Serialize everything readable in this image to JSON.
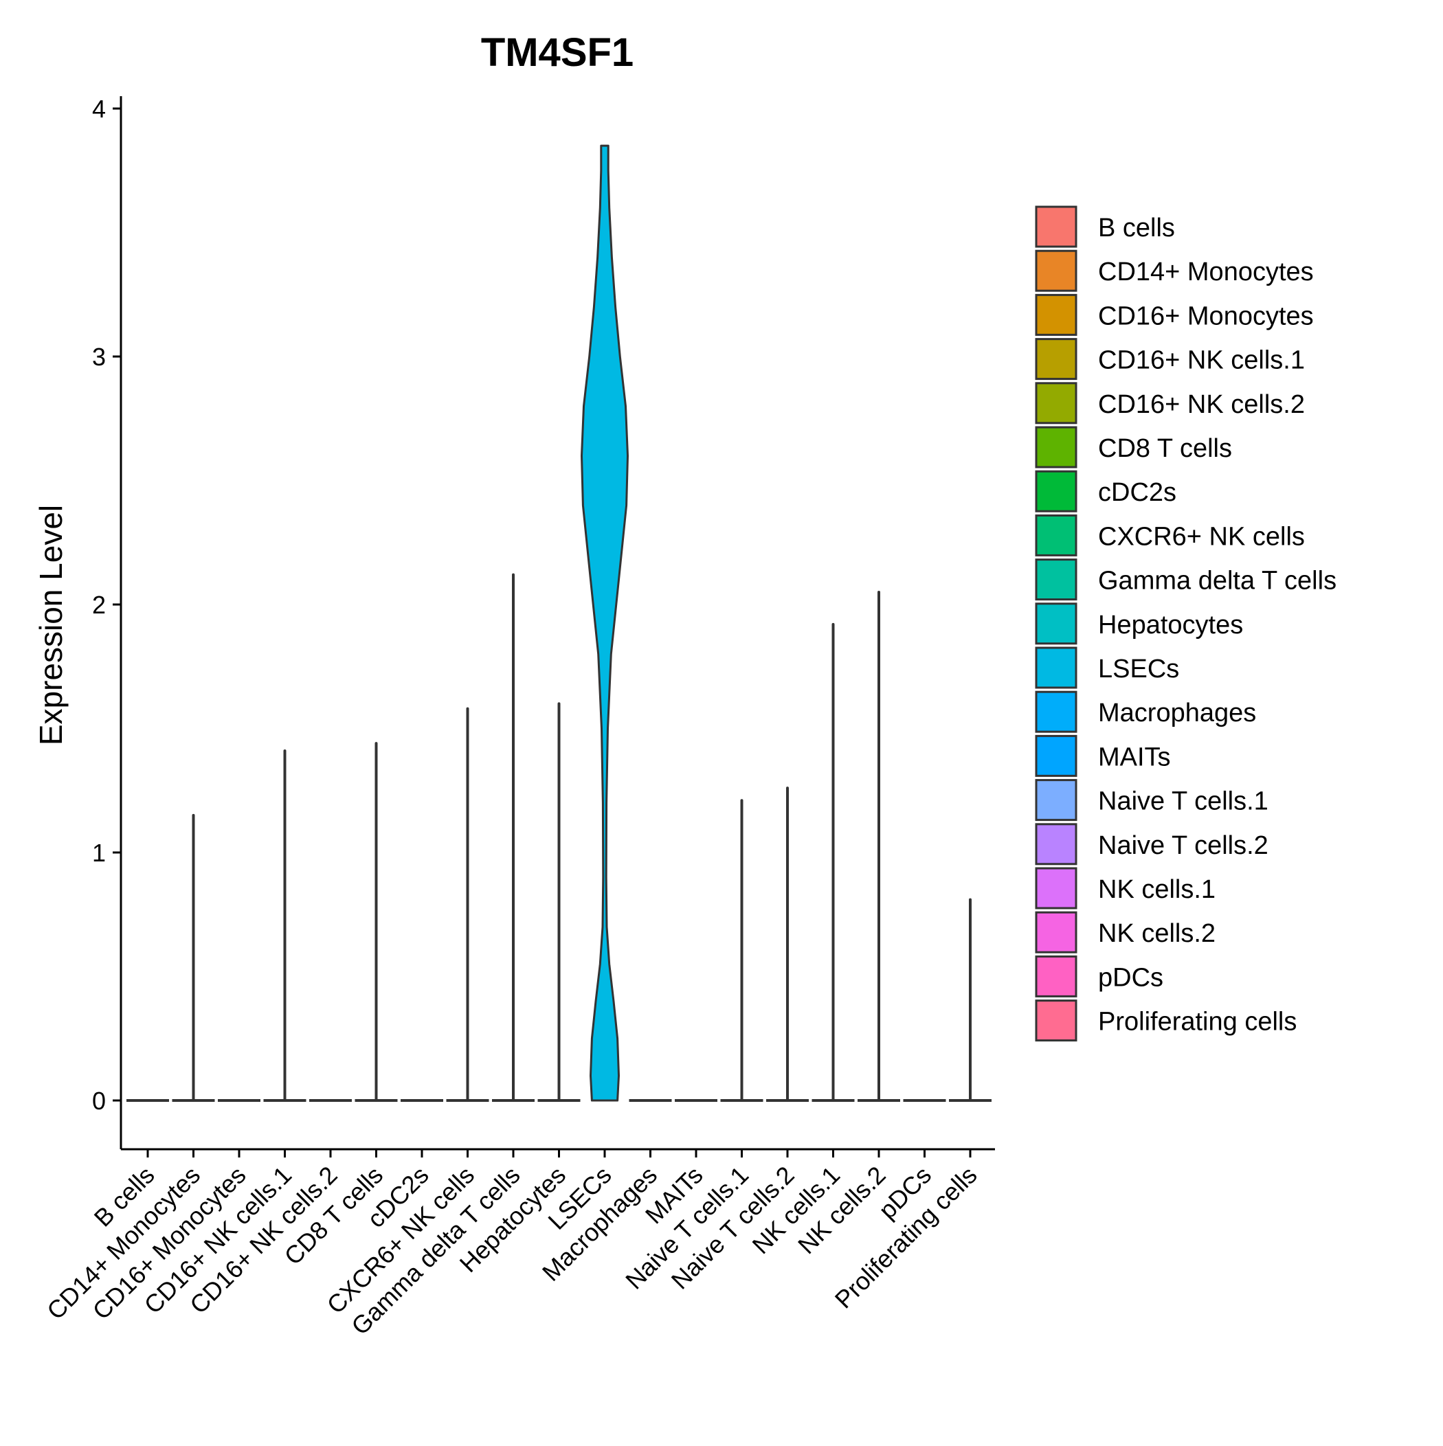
{
  "chart_data": {
    "type": "violin",
    "title": "TM4SF1",
    "xlabel": "",
    "ylabel": "Expression Level",
    "ylim": [
      -0.2,
      4.05
    ],
    "yticks": [
      0,
      1,
      2,
      3,
      4
    ],
    "grid": false,
    "legend_position": "right",
    "categories": [
      "B cells",
      "CD14+ Monocytes",
      "CD16+ Monocytes",
      "CD16+ NK cells.1",
      "CD16+ NK cells.2",
      "CD8 T cells",
      "cDC2s",
      "CXCR6+ NK cells",
      "Gamma delta T cells",
      "Hepatocytes",
      "LSECs",
      "Macrophages",
      "MAITs",
      "Naive T cells.1",
      "Naive T cells.2",
      "NK cells.1",
      "NK cells.2",
      "pDCs",
      "Proliferating cells"
    ],
    "colors": [
      "#F8766D",
      "#E88526",
      "#D39200",
      "#B79F00",
      "#93AA00",
      "#5EB300",
      "#00BA38",
      "#00BF74",
      "#00C19F",
      "#00BFC4",
      "#00B9E3",
      "#00ADFA",
      "#00A5FF",
      "#7CAEFF",
      "#B983FF",
      "#DC71FA",
      "#F564E3",
      "#FF61C3",
      "#FF6C91"
    ],
    "max_values": [
      0,
      1.15,
      0,
      1.41,
      0,
      1.44,
      0,
      1.58,
      2.12,
      1.6,
      3.85,
      0,
      0,
      1.21,
      1.26,
      1.92,
      2.05,
      0,
      0.81
    ],
    "lsecs_violin_profile": {
      "y": [
        0.0,
        0.1,
        0.25,
        0.4,
        0.55,
        0.7,
        0.9,
        1.2,
        1.5,
        1.8,
        2.1,
        2.4,
        2.6,
        2.8,
        3.0,
        3.2,
        3.4,
        3.6,
        3.75,
        3.85
      ],
      "half_width": [
        0.5,
        0.55,
        0.5,
        0.35,
        0.18,
        0.08,
        0.06,
        0.07,
        0.12,
        0.25,
        0.55,
        0.85,
        0.9,
        0.82,
        0.6,
        0.42,
        0.28,
        0.18,
        0.14,
        0.14
      ]
    }
  }
}
